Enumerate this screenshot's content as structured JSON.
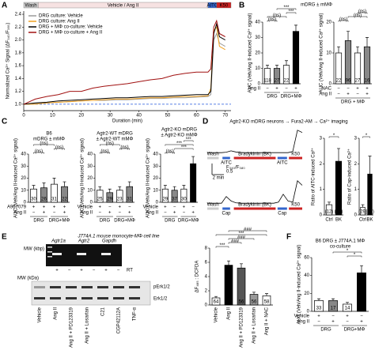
{
  "panel_labels": [
    "A",
    "B",
    "C",
    "D",
    "E",
    "F"
  ],
  "panel_titles": {
    "B": "mDRG ± mMΦ",
    "D": "Agtr2-KO mDRG neurons → Fura2-AM → Ca²⁺ imaging",
    "E": "J774A.1 mouse monocyte-MΦ cell line"
  },
  "gel": {
    "dna": {
      "mw_label": "MW (kbp)",
      "genes": [
        "Agtr1a",
        "Agtr2",
        "Gapdh"
      ],
      "rt_label": "RT",
      "rt_marks": [
        "+",
        "−",
        "+",
        "−",
        "+",
        "−"
      ]
    },
    "western": {
      "mw_label": "MW (kDa)",
      "bands": [
        "pErk1/2",
        "Erk1/2"
      ],
      "lanes": [
        "Vehicle",
        "Ang II",
        "Ang II + PD123319",
        "Ang II + Losartan",
        "C21",
        "CGP42112A",
        "TNF-α"
      ]
    }
  },
  "chart_data": [
    {
      "type": "line",
      "y_label": "Normalized Ca²⁺ Signal (ΔF₃₄₀/F₃₈₀)",
      "x_label": "Duration (min)",
      "annotations": [
        "Wash",
        "Vehicle / Ang II",
        "AITC",
        "K50"
      ],
      "x": [
        0,
        4,
        8,
        12,
        16,
        20,
        24,
        28,
        32,
        36,
        40,
        44,
        48,
        52,
        56,
        60,
        64,
        65,
        66,
        67,
        68,
        70
      ],
      "xlim": [
        0,
        72
      ],
      "xticks": [
        0,
        10,
        20,
        30,
        40,
        50,
        60,
        70
      ],
      "ylim": [
        0.9,
        2.45
      ],
      "yticks": [
        {
          "value": 1,
          "label": "1.0"
        },
        1.2,
        1.4,
        1.6,
        1.8,
        {
          "value": 2,
          "label": "2.0"
        },
        2.2,
        2.4
      ],
      "reference_line": 1,
      "series": [
        {
          "name": "DRG culture: Vehicle",
          "color": "#9a9a9a",
          "values": [
            1.0,
            1.01,
            1.02,
            1.03,
            1.04,
            1.05,
            1.06,
            1.06,
            1.07,
            1.07,
            1.08,
            1.09,
            1.09,
            1.1,
            1.1,
            1.11,
            1.12,
            1.15,
            2.0,
            2.1,
            1.95,
            1.9
          ]
        },
        {
          "name": "DRG culture: Ang II",
          "color": "#f0a020",
          "values": [
            1.0,
            1.0,
            1.02,
            1.03,
            1.04,
            1.05,
            1.06,
            1.07,
            1.08,
            1.08,
            1.09,
            1.1,
            1.1,
            1.11,
            1.12,
            1.12,
            1.13,
            1.25,
            2.15,
            2.2,
            1.9,
            1.85
          ]
        },
        {
          "name": "DRG + MΦ co-culture: Vehicle",
          "color": "#000000",
          "values": [
            1.0,
            1.02,
            1.03,
            1.05,
            1.06,
            1.07,
            1.08,
            1.09,
            1.1,
            1.1,
            1.11,
            1.12,
            1.12,
            1.13,
            1.14,
            1.15,
            1.15,
            1.2,
            2.1,
            2.25,
            2.05,
            2.0
          ]
        },
        {
          "name": "DRG + MΦ co-culture + Ang II",
          "color": "#a01010",
          "values": [
            1.0,
            1.08,
            1.12,
            1.15,
            1.2,
            1.2,
            1.25,
            1.28,
            1.3,
            1.32,
            1.35,
            1.38,
            1.4,
            1.45,
            1.48,
            1.5,
            1.5,
            1.55,
            2.2,
            2.3,
            2.1,
            2.05
          ]
        }
      ]
    },
    {
      "type": "bar",
      "y_label": "AUC (Veh/Ang II-induced Ca²⁺ signal)",
      "ylim": [
        0,
        40
      ],
      "yticks": [
        0,
        10,
        20,
        30,
        40
      ],
      "values": [
        10,
        10,
        12,
        34
      ],
      "errors": [
        2,
        2,
        3,
        4
      ],
      "colors": [
        "#ffffff",
        "#888888",
        "#ffffff",
        "#000000"
      ],
      "n_labels": [
        "118",
        "27",
        "22",
        "96"
      ],
      "rows": [
        {
          "name": "Ang II",
          "marks": [
            "−",
            "+",
            "−",
            "+"
          ]
        }
      ],
      "groups": [
        "DRG",
        "DRG+MΦ"
      ],
      "comparisons": [
        "(ns)",
        "(ns)",
        "***",
        "***"
      ]
    },
    {
      "type": "bar",
      "y_label": "AUC (Veh/Ang II-induced Ca²⁺ signal)",
      "ylim": [
        0,
        20
      ],
      "yticks": [
        0,
        10,
        20
      ],
      "values": [
        10,
        14,
        10,
        12
      ],
      "errors": [
        2,
        3,
        2,
        3
      ],
      "colors": [
        "#ffffff",
        "#888888",
        "#ffffff",
        "#888888"
      ],
      "n_labels": [
        "22",
        "96",
        "27",
        "16"
      ],
      "rows": [
        {
          "name": "NAC",
          "marks": [
            "−",
            "−",
            "+",
            "+"
          ]
        },
        {
          "name": "Ang II",
          "marks": [
            "−",
            "+",
            "−",
            "+"
          ]
        }
      ],
      "groups": [
        "DRG + MΦ"
      ],
      "comparisons": [
        "(ns)",
        "(ns)",
        "(ns)"
      ]
    },
    {
      "type": "bar",
      "title": [
        "B6",
        "mDRG ± mMΦ"
      ],
      "y_label": "AUC (Veh/Ang II-induced Ca²⁺ signal)",
      "ylim": [
        0,
        40
      ],
      "yticks": [
        0,
        10,
        20,
        30,
        40
      ],
      "values": [
        11,
        12,
        15,
        13
      ],
      "errors": [
        3,
        4,
        5,
        4
      ],
      "colors": [
        "#ffffff",
        "#888888",
        "#ffffff",
        "#888888"
      ],
      "n_labels": [
        "30",
        "26",
        "31",
        "22"
      ],
      "rows": [
        {
          "name": "A967079",
          "marks": [
            "+",
            "+",
            "+",
            "+"
          ]
        },
        {
          "name": "Ang II",
          "marks": [
            "−",
            "+",
            "−",
            "+"
          ]
        }
      ],
      "groups": [
        "DRG",
        "DRG+MΦ"
      ],
      "comparisons": [
        "(ns)",
        "(ns)",
        "(ns)"
      ]
    },
    {
      "type": "bar",
      "title": [
        "Agtr2-WT mDRG",
        "± Agtr2-WT mMΦ"
      ],
      "y_label": "AUC (Veh/Ang II-induced Ca²⁺ signal)",
      "ylim": [
        0,
        40
      ],
      "yticks": [
        0,
        10,
        20,
        30,
        40
      ],
      "values": [
        10,
        8,
        10,
        13
      ],
      "errors": [
        3,
        3,
        3,
        4
      ],
      "colors": [
        "#ffffff",
        "#888888",
        "#ffffff",
        "#888888"
      ],
      "n_labels": [
        "25",
        "29",
        "23",
        "31"
      ],
      "rows": [
        {
          "name": "Vehicle",
          "marks": [
            "+",
            "−",
            "+",
            "−"
          ]
        },
        {
          "name": "Ang II",
          "marks": [
            "−",
            "+",
            "−",
            "+"
          ]
        }
      ],
      "groups": [
        "DRG",
        "DRG+MΦ"
      ],
      "comparisons": [
        "(ns)",
        "(ns)",
        "(ns)"
      ]
    },
    {
      "type": "bar",
      "title": [
        "Agtr2-KO mDRG",
        "± Agtr2-KO mMΦ"
      ],
      "y_label": "AUC (Veh/Ang II-induced Ca²⁺ signal)",
      "ylim": [
        0,
        40
      ],
      "yticks": [
        0,
        10,
        20,
        30,
        40
      ],
      "values": [
        11,
        10,
        11,
        32
      ],
      "errors": [
        3,
        3,
        3,
        6
      ],
      "colors": [
        "#ffffff",
        "#888888",
        "#ffffff",
        "#000000"
      ],
      "n_labels": [
        "29",
        "37",
        "30",
        "40"
      ],
      "rows": [
        {
          "name": "Vehicle",
          "marks": [
            "+",
            "−",
            "+",
            "−"
          ]
        },
        {
          "name": "Ang II",
          "marks": [
            "−",
            "+",
            "−",
            "+"
          ]
        }
      ],
      "groups": [
        "DRG",
        "DRG+MΦ"
      ],
      "comparisons": [
        "(ns)",
        "***",
        "***",
        "***"
      ]
    },
    {
      "type": "trace",
      "ylim": [
        0.8,
        2.0
      ],
      "scale_x_label": "2 min",
      "scale_y_label": "F₃₄₀/F₃₈₀",
      "scale_y_value": 0.5,
      "traces": [
        {
          "labels": [
            "Wash",
            "AITC",
            "Bradykinin (BK)",
            "AITC",
            "K50"
          ],
          "values": [
            0.9,
            0.9,
            0.9,
            0.9,
            0.92,
            0.98,
            0.93,
            0.91,
            0.9,
            0.9,
            0.9,
            0.9,
            0.9,
            0.9,
            0.9,
            0.9,
            0.9,
            0.9,
            0.95,
            1.9,
            1.8
          ]
        },
        {
          "labels": [
            "Wash",
            "Cap",
            "Bradykinin (BK)",
            "Cap",
            "K50"
          ],
          "values": [
            0.9,
            0.9,
            0.9,
            0.9,
            1.2,
            1.0,
            0.92,
            0.9,
            0.9,
            0.9,
            0.9,
            0.9,
            0.9,
            0.9,
            0.9,
            0.95,
            1.3,
            1.0,
            0.95,
            1.9,
            1.7
          ]
        }
      ]
    },
    {
      "type": "bar",
      "y_label": "Ratio of AITC-induced Ca²⁺",
      "ylim": [
        0,
        3
      ],
      "yticks": [
        0,
        1,
        2,
        3
      ],
      "categories": [
        "Ctrl",
        "BK"
      ],
      "values": [
        0.4,
        2.1
      ],
      "errors": [
        0.1,
        0.5
      ],
      "colors": [
        "#ffffff",
        "#000000"
      ],
      "n_labels": [
        "(12)",
        "(12)"
      ],
      "comparisons": [
        "*"
      ]
    },
    {
      "type": "bar",
      "y_label": "Ratio of Cap-induced Ca²⁺",
      "ylim": [
        0,
        3
      ],
      "yticks": [
        0,
        1,
        2,
        3
      ],
      "categories": [
        "Ctrl",
        "BK"
      ],
      "values": [
        0.3,
        1.6
      ],
      "errors": [
        0.1,
        0.7
      ],
      "colors": [
        "#ffffff",
        "#000000"
      ],
      "n_labels": [
        "(29)",
        "(26)"
      ],
      "comparisons": [
        "*"
      ]
    },
    {
      "type": "bar",
      "y_label": "ΔF₄₈₅ : DCFDA",
      "ylim": [
        0,
        8
      ],
      "yticks": [
        0,
        2,
        4,
        6,
        8
      ],
      "categories": [
        "Vehicle",
        "Ang II",
        "Ang II + PD123319",
        "Ang II + Losartan",
        "Ang II + NAC"
      ],
      "values": [
        1,
        5.6,
        5.2,
        1.5,
        1.3
      ],
      "errors": [
        0.2,
        0.6,
        0.6,
        0.3,
        0.3
      ],
      "colors": [
        "#ffffff",
        "#000000",
        "#555555",
        "#999999",
        "#ffffff"
      ],
      "n_labels": [
        "64",
        "53",
        "56",
        "56",
        "58"
      ],
      "comparisons": [
        "***",
        "###",
        "###",
        "***",
        "###"
      ]
    },
    {
      "type": "bar",
      "title": [
        "B6 DRG ± J774A.1 MΦ",
        "co-culture"
      ],
      "y_label": "AUC (Veh/Ang II-induced Ca²⁺ signal)",
      "ylim": [
        0,
        60
      ],
      "yticks": [
        0,
        20,
        40,
        60
      ],
      "values": [
        12,
        12,
        8,
        43
      ],
      "errors": [
        2,
        2,
        2,
        8
      ],
      "colors": [
        "#ffffff",
        "#888888",
        "#ffffff",
        "#000000"
      ],
      "n_labels": [
        "33",
        "17",
        "14",
        "20"
      ],
      "rows": [
        {
          "name": "Vehicle",
          "marks": [
            "+",
            "−",
            "+",
            "−"
          ]
        },
        {
          "name": "Ang II",
          "marks": [
            "−",
            "+",
            "−",
            "+"
          ]
        }
      ],
      "groups": [
        "DRG",
        "DRG+MΦ"
      ],
      "comparisons": [
        "*",
        "*"
      ]
    }
  ]
}
